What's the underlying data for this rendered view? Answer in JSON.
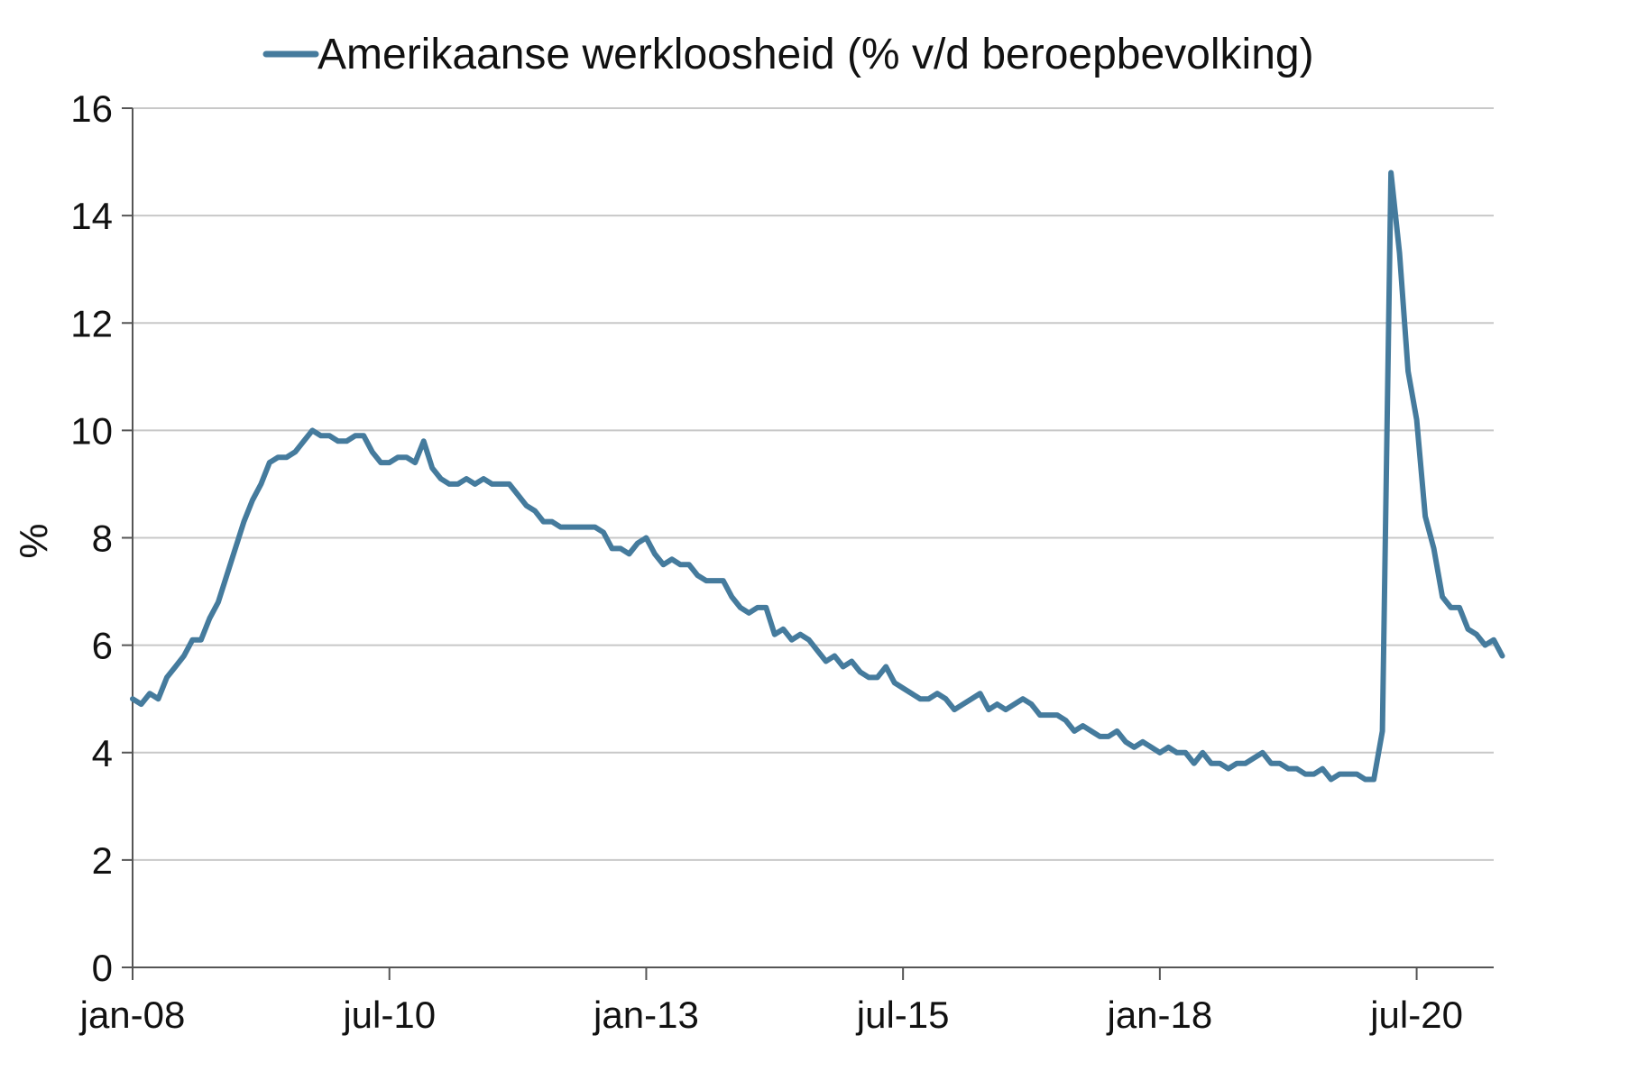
{
  "chart_data": {
    "type": "line",
    "legend": "top",
    "ylabel": "%",
    "ylim": [
      0,
      16
    ],
    "yticks": [
      0,
      2,
      4,
      6,
      8,
      10,
      12,
      14,
      16
    ],
    "xlim": [
      "2008-01",
      "2021-04"
    ],
    "xticks": [
      {
        "date": "2008-01",
        "label": "jan-08"
      },
      {
        "date": "2010-07",
        "label": "jul-10"
      },
      {
        "date": "2013-01",
        "label": "jan-13"
      },
      {
        "date": "2015-07",
        "label": "jul-15"
      },
      {
        "date": "2018-01",
        "label": "jan-18"
      },
      {
        "date": "2020-07",
        "label": "jul-20"
      }
    ],
    "grid": true,
    "series": [
      {
        "name": "Amerikaanse werkloosheid (% v/d beroepbevolking)",
        "color": "#457b9d",
        "start": "2008-01",
        "frequency": "monthly",
        "values": [
          5.0,
          4.9,
          5.1,
          5.0,
          5.4,
          5.6,
          5.8,
          6.1,
          6.1,
          6.5,
          6.8,
          7.3,
          7.8,
          8.3,
          8.7,
          9.0,
          9.4,
          9.5,
          9.5,
          9.6,
          9.8,
          10.0,
          9.9,
          9.9,
          9.8,
          9.8,
          9.9,
          9.9,
          9.6,
          9.4,
          9.4,
          9.5,
          9.5,
          9.4,
          9.8,
          9.3,
          9.1,
          9.0,
          9.0,
          9.1,
          9.0,
          9.1,
          9.0,
          9.0,
          9.0,
          8.8,
          8.6,
          8.5,
          8.3,
          8.3,
          8.2,
          8.2,
          8.2,
          8.2,
          8.2,
          8.1,
          7.8,
          7.8,
          7.7,
          7.9,
          8.0,
          7.7,
          7.5,
          7.6,
          7.5,
          7.5,
          7.3,
          7.2,
          7.2,
          7.2,
          6.9,
          6.7,
          6.6,
          6.7,
          6.7,
          6.2,
          6.3,
          6.1,
          6.2,
          6.1,
          5.9,
          5.7,
          5.8,
          5.6,
          5.7,
          5.5,
          5.4,
          5.4,
          5.6,
          5.3,
          5.2,
          5.1,
          5.0,
          5.0,
          5.1,
          5.0,
          4.8,
          4.9,
          5.0,
          5.1,
          4.8,
          4.9,
          4.8,
          4.9,
          5.0,
          4.9,
          4.7,
          4.7,
          4.7,
          4.6,
          4.4,
          4.5,
          4.4,
          4.3,
          4.3,
          4.4,
          4.2,
          4.1,
          4.2,
          4.1,
          4.0,
          4.1,
          4.0,
          4.0,
          3.8,
          4.0,
          3.8,
          3.8,
          3.7,
          3.8,
          3.8,
          3.9,
          4.0,
          3.8,
          3.8,
          3.7,
          3.7,
          3.6,
          3.6,
          3.7,
          3.5,
          3.6,
          3.6,
          3.6,
          3.5,
          3.5,
          4.4,
          14.8,
          13.3,
          11.1,
          10.2,
          8.4,
          7.8,
          6.9,
          6.7,
          6.7,
          6.3,
          6.2,
          6.0,
          6.1,
          5.8
        ]
      }
    ]
  }
}
